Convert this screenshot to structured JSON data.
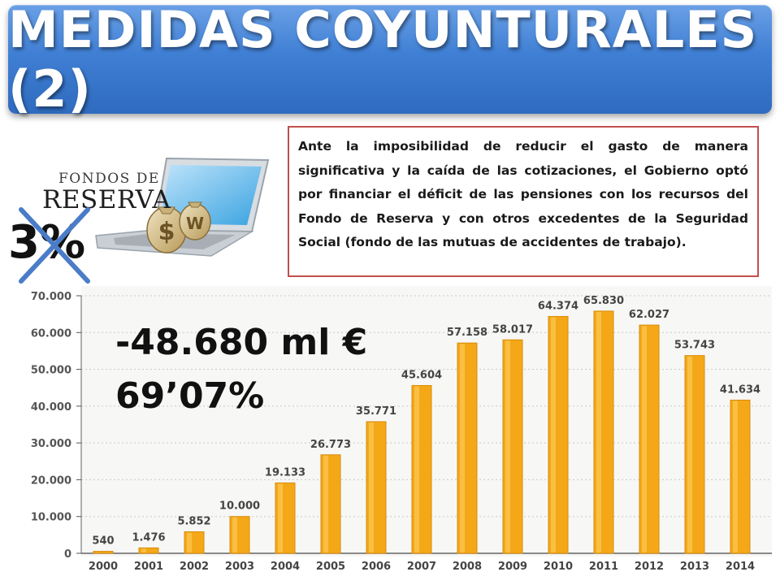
{
  "header": {
    "title": "MEDIDAS COYUNTURALES (2)"
  },
  "info_box": {
    "text": "Ante la imposibilidad de reducir el gasto de manera significativa y la caída de las cotizaciones, el Gobierno optó por financiar el déficit de las pensiones con los recursos del Fondo de Reserva y con otros excedentes de la Seguridad Social (fondo de las mutuas de accidentes de trabajo)."
  },
  "logo": {
    "line1": "FONDOS DE",
    "line2": "RESERVA"
  },
  "crossed_label": "3%",
  "highlight": {
    "amount": "-48.680 ml €",
    "percent": "69’07%"
  },
  "colors": {
    "title_bar": "#3f7fd4",
    "box_border": "#c0504d",
    "bar": "#f4a817",
    "cross": "#4a7cc7"
  },
  "chart_data": {
    "type": "bar",
    "categories": [
      "2000",
      "2001",
      "2002",
      "2003",
      "2004",
      "2005",
      "2006",
      "2007",
      "2008",
      "2009",
      "2010",
      "2011",
      "2012",
      "2013",
      "2014"
    ],
    "values": [
      540,
      1476,
      5852,
      10000,
      19133,
      26773,
      35771,
      45604,
      57158,
      58017,
      64374,
      65830,
      62027,
      53743,
      41634
    ],
    "value_labels": [
      "540",
      "1.476",
      "5.852",
      "10.000",
      "19.133",
      "26.773",
      "35.771",
      "45.604",
      "57.158",
      "58.017",
      "64.374",
      "65.830",
      "62.027",
      "53.743",
      "41.634"
    ],
    "y_ticks": [
      0,
      10000,
      20000,
      30000,
      40000,
      50000,
      60000,
      70000
    ],
    "y_tick_labels": [
      "0",
      "10.000",
      "20.000",
      "30.000",
      "40.000",
      "50.000",
      "60.000",
      "70.000"
    ],
    "ylim": [
      0,
      70000
    ],
    "grid": true,
    "legend": "none"
  }
}
